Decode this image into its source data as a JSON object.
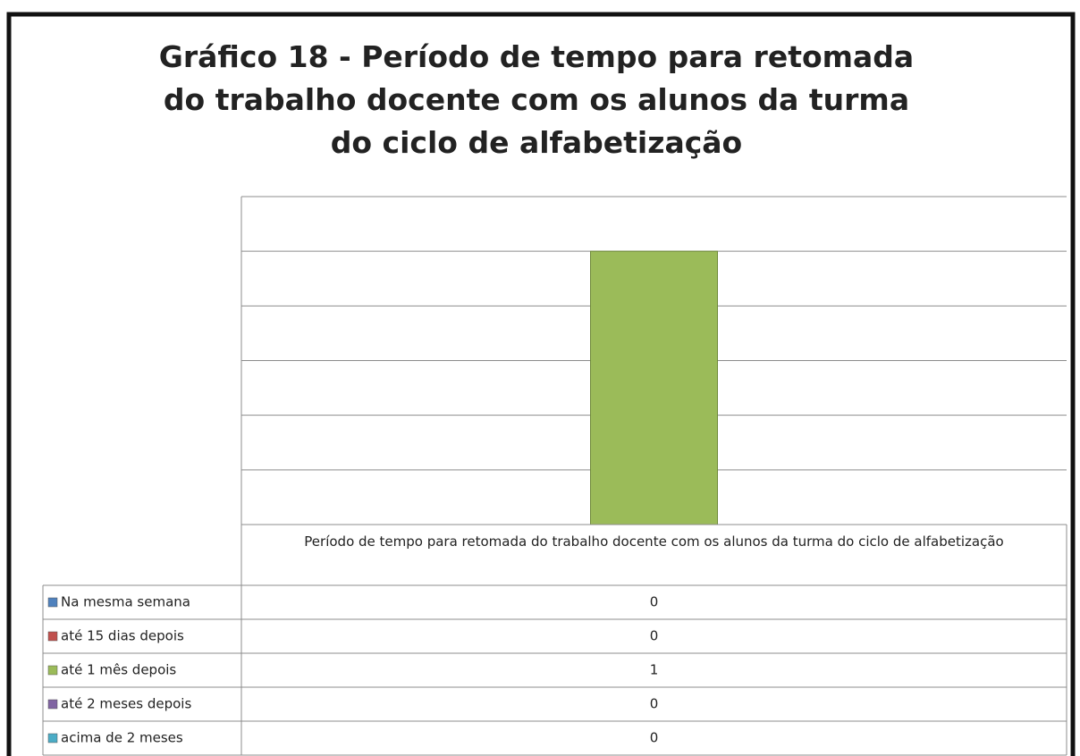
{
  "chart_data": {
    "type": "bar",
    "title": "Gráfico 18 - Período de tempo para retomada do trabalho docente com os alunos da turma do ciclo de alfabetização",
    "categories": [
      "Período de tempo para retomada do trabalho docente com os alunos da turma do ciclo de alfabetização"
    ],
    "series": [
      {
        "name": "Na mesma semana",
        "color": "#4f81bd",
        "values": [
          0
        ]
      },
      {
        "name": "até 15 dias depois",
        "color": "#c0504d",
        "values": [
          0
        ]
      },
      {
        "name": "até 1 mês depois",
        "color": "#9bbb59",
        "values": [
          1
        ]
      },
      {
        "name": "até 2 meses depois",
        "color": "#8064a2",
        "values": [
          0
        ]
      },
      {
        "name": "acima de 2 meses",
        "color": "#4bacc6",
        "values": [
          0
        ]
      }
    ],
    "ylim": [
      0,
      1.2
    ],
    "yticks": [
      0,
      0.2,
      0.4,
      0.6,
      0.8,
      1,
      1.2
    ],
    "grid": true
  }
}
